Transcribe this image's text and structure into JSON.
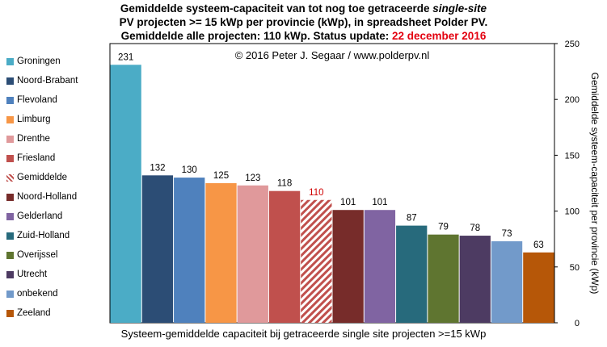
{
  "title": {
    "line1_pre": "Gemiddelde systeem-capaciteit van tot nog toe getraceerde ",
    "line1_italic": "single-site",
    "line2": "PV projecten >= 15 kWp per provincie (kWp), in spreadsheet Polder PV.",
    "line3_pre": "Gemiddelde alle projecten: 110 kWp. Status update: ",
    "line3_date": "22 december 2016"
  },
  "copyright": "© 2016 Peter J. Segaar / www.polderpv.nl",
  "colors": {
    "date_red": "#e3000f",
    "average_label": "#d00000"
  },
  "chart_data": {
    "type": "bar",
    "categories": [
      "Groningen",
      "Noord-Brabant",
      "Flevoland",
      "Limburg",
      "Drenthe",
      "Friesland",
      "Gemiddelde",
      "Noord-Holland",
      "Gelderland",
      "Zuid-Holland",
      "Overijssel",
      "Utrecht",
      "onbekend",
      "Zeeland"
    ],
    "values": [
      231,
      132,
      130,
      125,
      123,
      118,
      110,
      101,
      101,
      87,
      79,
      78,
      73,
      63
    ],
    "colors": [
      "#4bacc6",
      "#2c4d75",
      "#4f81bd",
      "#f79646",
      "#e0999b",
      "#c0504d",
      "#c0504d",
      "#772c2a",
      "#8064a2",
      "#276a7c",
      "#5f7530",
      "#4d3b62",
      "#729aca",
      "#b65708"
    ],
    "hatched_category": "Gemiddelde",
    "xlabel": "Systeem-gemiddelde capaciteit bij getraceerde single site projecten >=15 kWp",
    "ylabel": "Gemiddelde systeem-capaciteit per provincie (kWp)",
    "ylim": [
      0,
      250
    ],
    "yticks": [
      0,
      50,
      100,
      150,
      200,
      250
    ],
    "y_axis_side": "right",
    "legend_position": "left",
    "grid": false
  }
}
